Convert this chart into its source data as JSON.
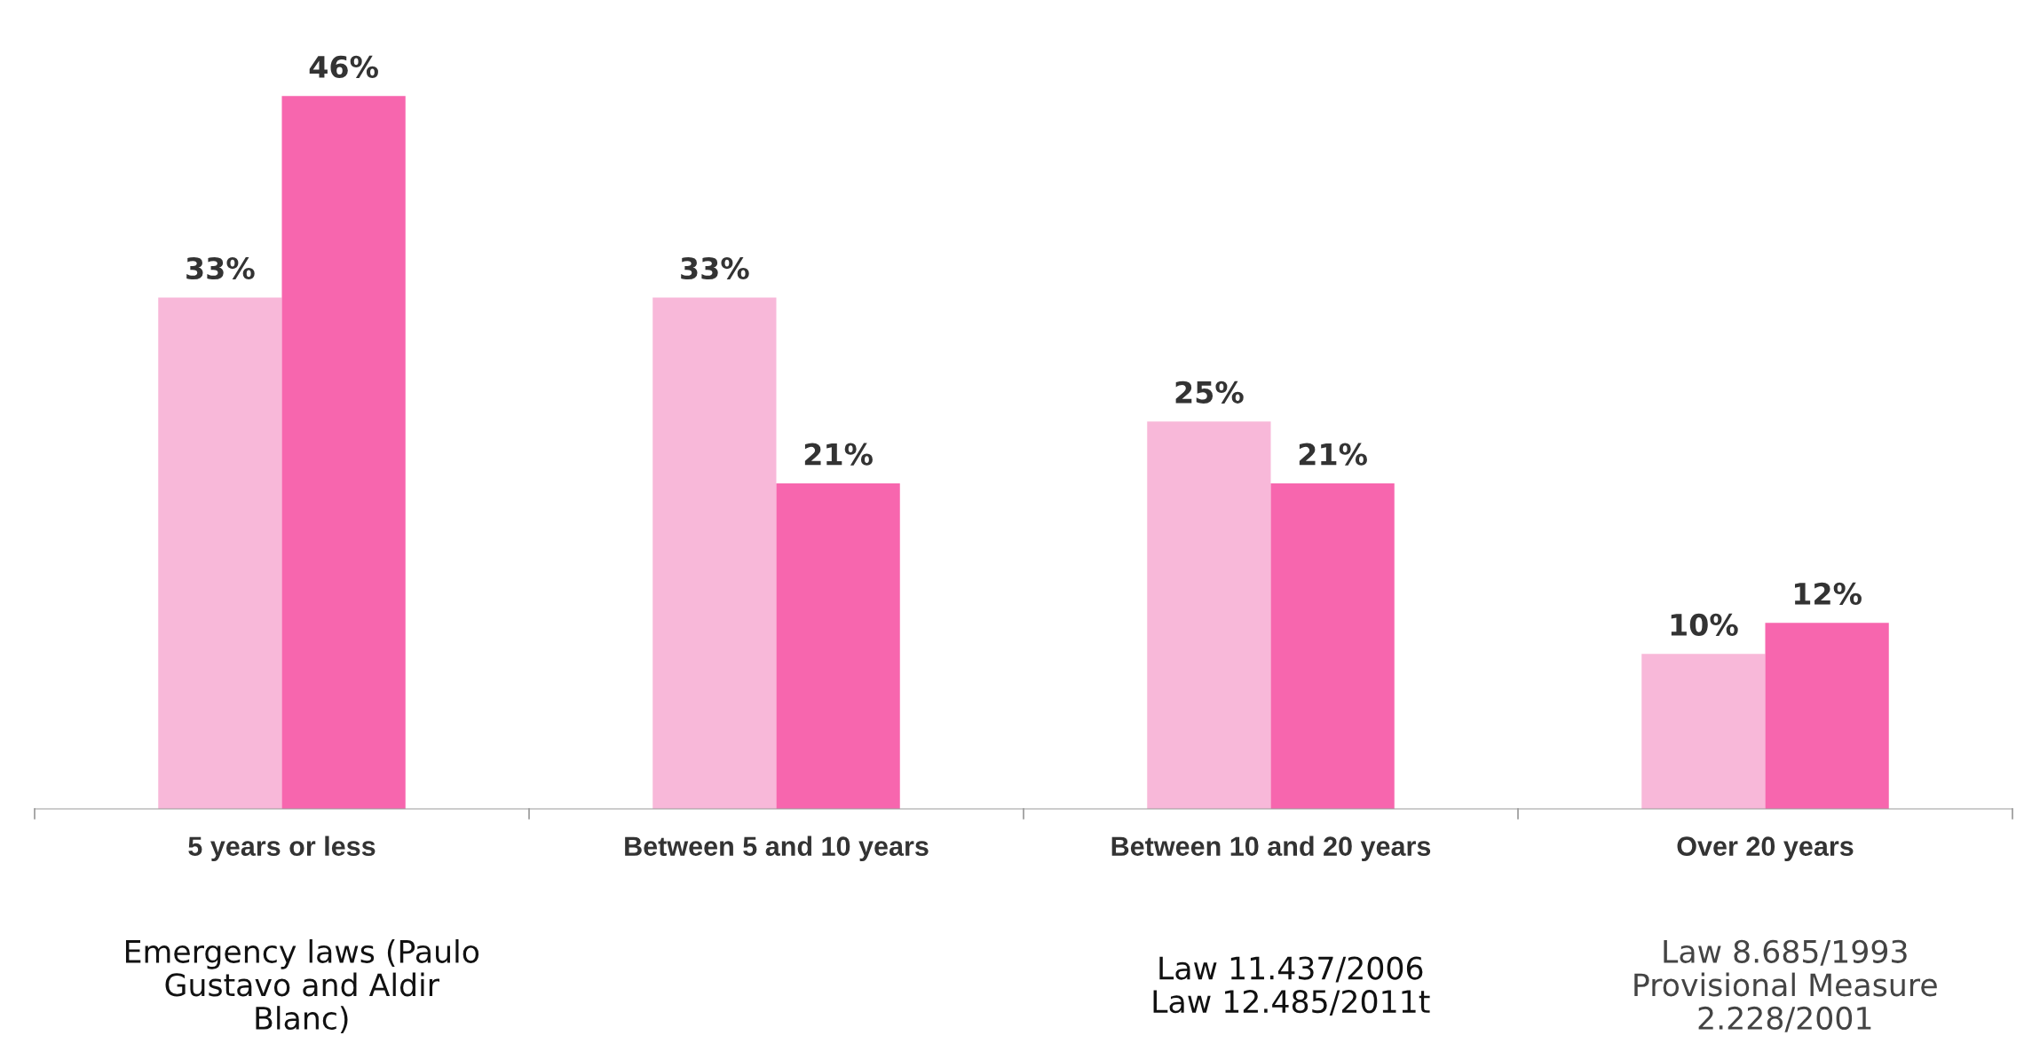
{
  "chart_data": {
    "type": "bar",
    "categories": [
      "5 years or less",
      "Between 5 and 10 years",
      "Between 10 and 20 years",
      "Over 20 years"
    ],
    "series": [
      {
        "color": "#f8b8d9",
        "values": [
          33,
          33,
          25,
          10
        ],
        "value_labels": [
          "33%",
          "33%",
          "25%",
          "10%"
        ]
      },
      {
        "color": "#f766ae",
        "values": [
          46,
          21,
          21,
          12
        ],
        "value_labels": [
          "46%",
          "21%",
          "21%",
          "12%"
        ]
      }
    ],
    "annotations": [
      "Emergency laws (Paulo\nGustavo and Aldir\nBlanc)",
      "Law 11.437/2006\nLaw 12.485/2011t",
      "Law 8.685/1993\nProvisional Measure\n2.228/2001"
    ]
  }
}
